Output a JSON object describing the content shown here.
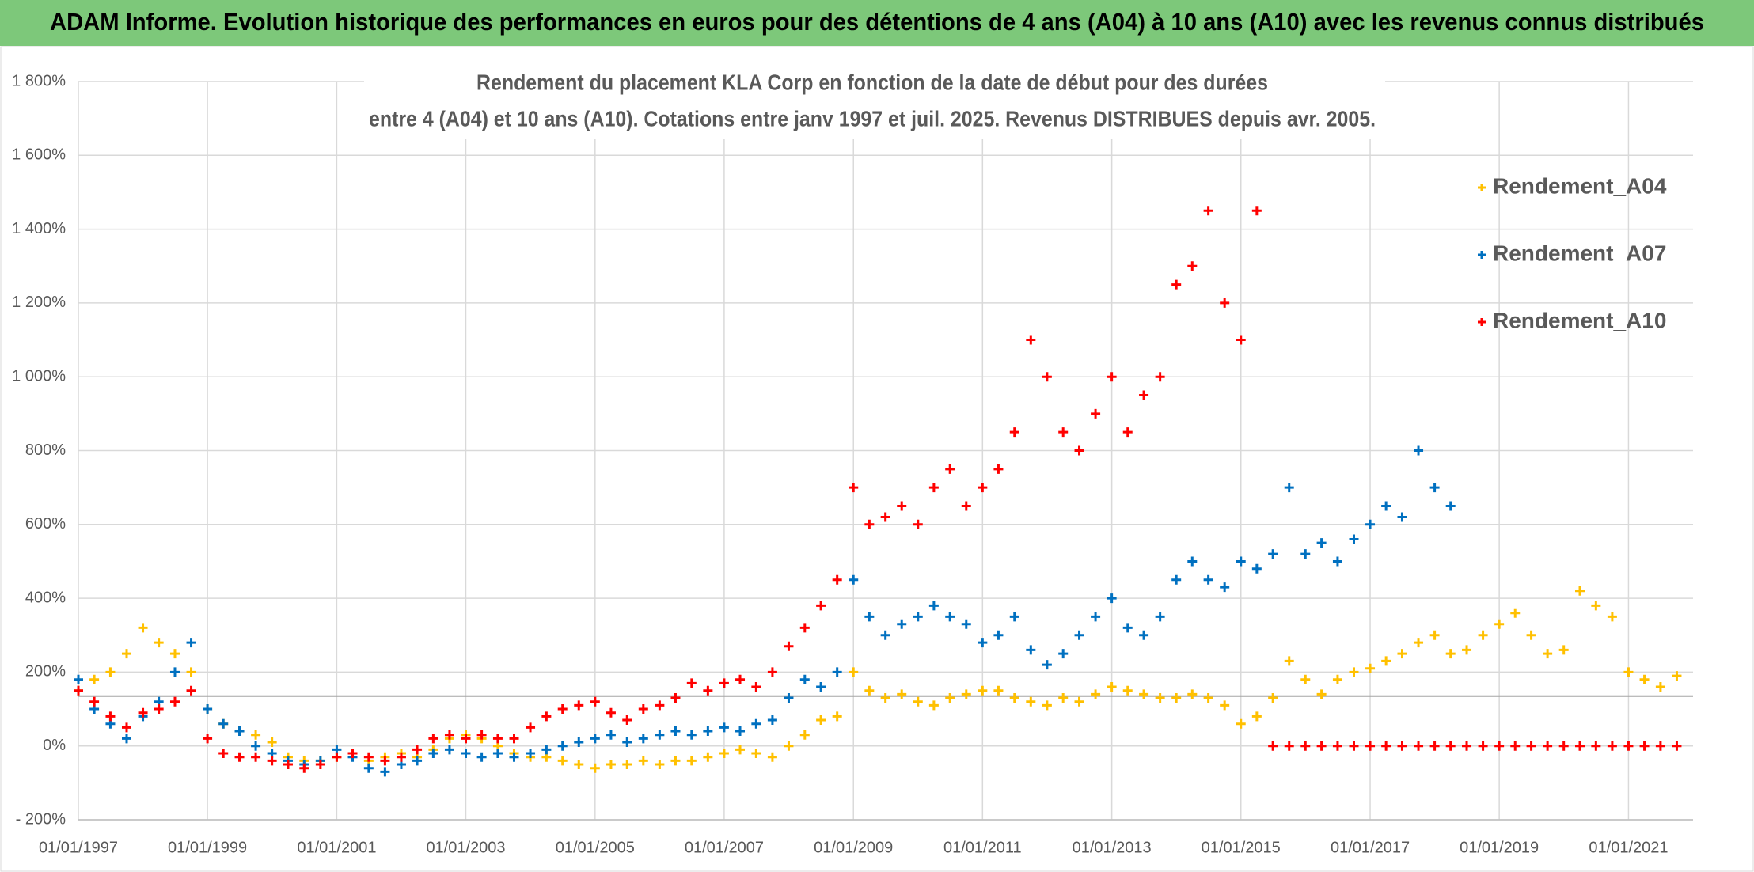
{
  "chart_data": {
    "type": "scatter",
    "header": "ADAM Informe. Evolution historique des performances en euros pour des détentions de 4 ans (A04) à 10 ans (A10) avec les revenus connus distribués",
    "title": "Rendement du placement KLA Corp en fonction de la date de début pour des durées",
    "subtitle": "entre 4 (A04) et 10 ans (A10). Cotations entre janv 1997 et juil. 2025. Revenus DISTRIBUES depuis avr. 2005.",
    "x": [
      "01/01/1997",
      "01/04/1997",
      "01/07/1997",
      "01/10/1997",
      "01/01/1998",
      "01/04/1998",
      "01/07/1998",
      "01/10/1998",
      "01/01/1999",
      "01/04/1999",
      "01/07/1999",
      "01/10/1999",
      "01/01/2000",
      "01/04/2000",
      "01/07/2000",
      "01/10/2000",
      "01/01/2001",
      "01/04/2001",
      "01/07/2001",
      "01/10/2001",
      "01/01/2002",
      "01/04/2002",
      "01/07/2002",
      "01/10/2002",
      "01/01/2003",
      "01/04/2003",
      "01/07/2003",
      "01/10/2003",
      "01/01/2004",
      "01/04/2004",
      "01/07/2004",
      "01/10/2004",
      "01/01/2005",
      "01/04/2005",
      "01/07/2005",
      "01/10/2005",
      "01/01/2006",
      "01/04/2006",
      "01/07/2006",
      "01/10/2006",
      "01/01/2007",
      "01/04/2007",
      "01/07/2007",
      "01/10/2007",
      "01/01/2008",
      "01/04/2008",
      "01/07/2008",
      "01/10/2008",
      "01/01/2009",
      "01/04/2009",
      "01/07/2009",
      "01/10/2009",
      "01/01/2010",
      "01/04/2010",
      "01/07/2010",
      "01/10/2010",
      "01/01/2011",
      "01/04/2011",
      "01/07/2011",
      "01/10/2011",
      "01/01/2012",
      "01/04/2012",
      "01/07/2012",
      "01/10/2012",
      "01/01/2013",
      "01/04/2013",
      "01/07/2013",
      "01/10/2013",
      "01/01/2014",
      "01/04/2014",
      "01/07/2014",
      "01/10/2014",
      "01/01/2015",
      "01/04/2015",
      "01/07/2015",
      "01/10/2015",
      "01/01/2016",
      "01/04/2016",
      "01/07/2016",
      "01/10/2016",
      "01/01/2017",
      "01/04/2017",
      "01/07/2017",
      "01/10/2017",
      "01/01/2018",
      "01/04/2018",
      "01/07/2018",
      "01/10/2018",
      "01/01/2019",
      "01/04/2019",
      "01/07/2019",
      "01/10/2019",
      "01/01/2020",
      "01/04/2020",
      "01/07/2020",
      "01/10/2020",
      "01/01/2021",
      "01/04/2021",
      "01/07/2021",
      "01/10/2021"
    ],
    "series": [
      {
        "name": "Rendement_A04",
        "color": "#ffc000",
        "values": [
          150,
          180,
          200,
          250,
          320,
          280,
          250,
          200,
          100,
          60,
          40,
          30,
          10,
          -30,
          -40,
          -40,
          -30,
          -20,
          -40,
          -30,
          -20,
          -30,
          -10,
          20,
          30,
          20,
          0,
          -20,
          -30,
          -30,
          -40,
          -50,
          -60,
          -50,
          -50,
          -40,
          -50,
          -40,
          -40,
          -30,
          -20,
          -10,
          -20,
          -30,
          0,
          30,
          70,
          80,
          200,
          150,
          130,
          140,
          120,
          110,
          130,
          140,
          150,
          150,
          130,
          120,
          110,
          130,
          120,
          140,
          160,
          150,
          140,
          130,
          130,
          140,
          130,
          110,
          60,
          80,
          130,
          230,
          180,
          140,
          180,
          200,
          210,
          230,
          250,
          280,
          300,
          250,
          260,
          300,
          330,
          360,
          300,
          250,
          260,
          420,
          380,
          350,
          200,
          180,
          160,
          190
        ]
      },
      {
        "name": "Rendement_A07",
        "color": "#0070c0",
        "values": [
          180,
          100,
          60,
          20,
          80,
          120,
          200,
          280,
          100,
          60,
          40,
          0,
          -20,
          -40,
          -50,
          -40,
          -10,
          -30,
          -60,
          -70,
          -50,
          -40,
          -20,
          -10,
          -20,
          -30,
          -20,
          -30,
          -20,
          -10,
          0,
          10,
          20,
          30,
          10,
          20,
          30,
          40,
          30,
          40,
          50,
          40,
          60,
          70,
          130,
          180,
          160,
          200,
          450,
          350,
          300,
          330,
          350,
          380,
          350,
          330,
          280,
          300,
          350,
          260,
          220,
          250,
          300,
          350,
          400,
          320,
          300,
          350,
          450,
          500,
          450,
          430,
          500,
          480,
          520,
          700,
          520,
          550,
          500,
          560,
          600,
          650,
          620,
          800,
          700,
          650,
          null,
          null,
          null,
          null,
          null,
          null,
          null,
          null,
          null,
          null,
          null,
          null,
          null,
          null
        ]
      },
      {
        "name": "Rendement_A10",
        "color": "#ff0000",
        "values": [
          150,
          120,
          80,
          50,
          90,
          100,
          120,
          150,
          20,
          -20,
          -30,
          -30,
          -40,
          -50,
          -60,
          -50,
          -30,
          -20,
          -30,
          -40,
          -30,
          -10,
          20,
          30,
          20,
          30,
          20,
          20,
          50,
          80,
          100,
          110,
          120,
          90,
          70,
          100,
          110,
          130,
          170,
          150,
          170,
          180,
          160,
          200,
          270,
          320,
          380,
          450,
          700,
          600,
          620,
          650,
          600,
          700,
          750,
          650,
          700,
          750,
          850,
          1100,
          1000,
          850,
          800,
          900,
          1000,
          850,
          950,
          1000,
          1250,
          1300,
          1450,
          1200,
          1100,
          1450,
          0,
          0,
          0,
          0,
          0,
          0,
          0,
          0,
          0,
          0,
          0,
          0,
          0,
          0,
          0,
          0,
          0,
          0,
          0,
          0,
          0,
          0,
          0,
          0,
          0,
          0
        ]
      }
    ],
    "xlim": [
      "01/01/1997",
      "01/01/2022"
    ],
    "xticks": [
      "01/01/1997",
      "01/01/1999",
      "01/01/2001",
      "01/01/2003",
      "01/01/2005",
      "01/01/2007",
      "01/01/2009",
      "01/01/2011",
      "01/01/2013",
      "01/01/2015",
      "01/01/2017",
      "01/01/2019",
      "01/01/2021"
    ],
    "ylim": [
      -200,
      1800
    ],
    "yticks": [
      {
        "value": -200,
        "label": "- 200%"
      },
      {
        "value": 0,
        "label": "0%"
      },
      {
        "value": 200,
        "label": "200%"
      },
      {
        "value": 400,
        "label": "400%"
      },
      {
        "value": 600,
        "label": "600%"
      },
      {
        "value": 800,
        "label": "800%"
      },
      {
        "value": 1000,
        "label": "1 000%"
      },
      {
        "value": 1200,
        "label": "1 200%"
      },
      {
        "value": 1400,
        "label": "1 400%"
      },
      {
        "value": 1600,
        "label": "1 600%"
      },
      {
        "value": 1800,
        "label": "1 800%"
      }
    ],
    "hline": 135,
    "grid": true,
    "legend": "right"
  }
}
